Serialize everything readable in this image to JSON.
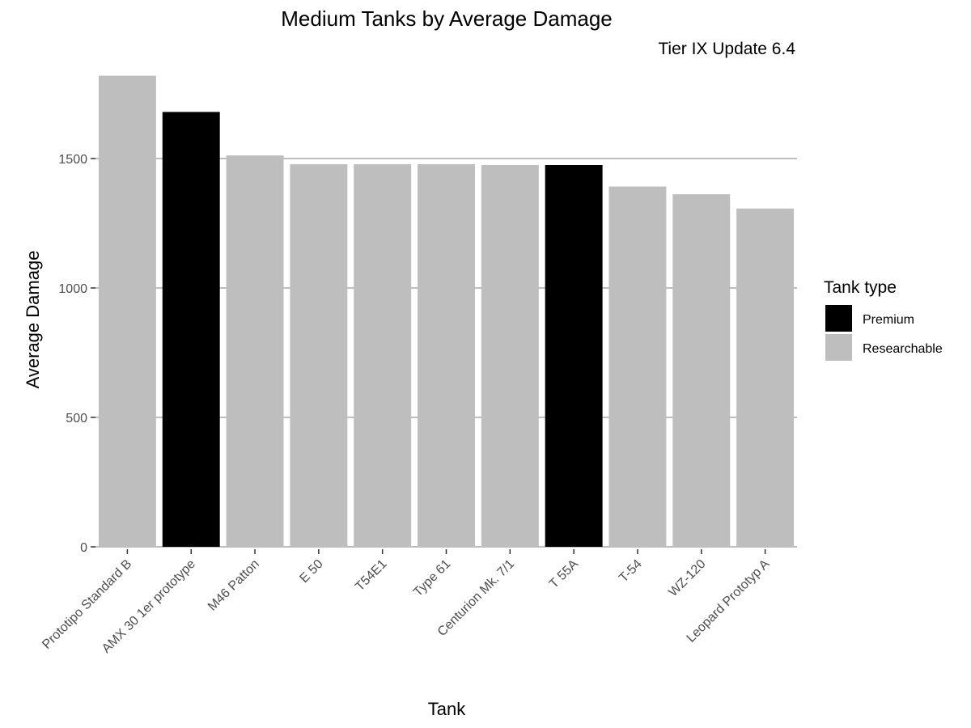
{
  "chart_data": {
    "type": "bar",
    "title": "Medium Tanks by Average Damage",
    "subtitle": "Tier IX Update 6.4",
    "xlabel": "Tank",
    "ylabel": "Average Damage",
    "ylim": [
      0,
      1800
    ],
    "yticks": [
      0,
      500,
      1000,
      1500
    ],
    "grid": "horizontal major",
    "categories": [
      "Prototipo Standard B",
      "AMX 30 1er prototype",
      "M46 Patton",
      "E 50",
      "T54E1",
      "Type 61",
      "Centurion Mk. 7/1",
      "T 55A",
      "T-54",
      "WZ-120",
      "Leopard Prototyp A"
    ],
    "values": [
      1820,
      1680,
      1512,
      1478,
      1478,
      1478,
      1475,
      1475,
      1392,
      1362,
      1307
    ],
    "types": [
      "Researchable",
      "Premium",
      "Researchable",
      "Researchable",
      "Researchable",
      "Researchable",
      "Researchable",
      "Premium",
      "Researchable",
      "Researchable",
      "Researchable"
    ],
    "legend": {
      "title": "Tank type",
      "position": "right",
      "entries": [
        {
          "label": "Premium",
          "color": "#000000"
        },
        {
          "label": "Researchable",
          "color": "#bebebe"
        }
      ]
    },
    "colors": {
      "Premium": "#000000",
      "Researchable": "#bebebe",
      "grid": "#bebebe",
      "tick_label": "#4d4d4d"
    }
  }
}
